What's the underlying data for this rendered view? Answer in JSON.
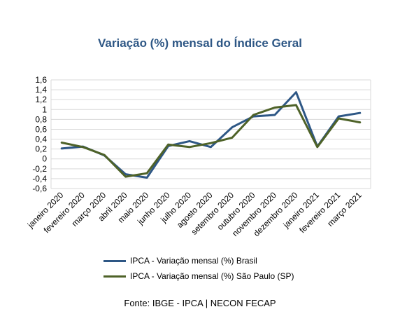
{
  "chart_data": {
    "type": "line",
    "title": "Variação (%) mensal do Índice Geral",
    "categories": [
      "janeiro 2020",
      "fevereiro 2020",
      "março 2020",
      "abril 2020",
      "maio 2020",
      "junho 2020",
      "julho 2020",
      "agosto 2020",
      "setembro 2020",
      "outubro 2020",
      "novembro 2020",
      "dezembro 2020",
      "janeiro 2021",
      "fevereiro 2021",
      "março 2021"
    ],
    "yticks": [
      "1,6",
      "1,4",
      "1,2",
      "1",
      "0,8",
      "0,6",
      "0,4",
      "0,2",
      "0",
      "-0,2",
      "-0,4",
      "-0,6"
    ],
    "ylim": [
      -0.6,
      1.6
    ],
    "grid": true,
    "legend_position": "bottom",
    "series": [
      {
        "name": "IPCA - Variação mensal (%) Brasil",
        "color": "#2e5785",
        "values": [
          0.21,
          0.25,
          0.07,
          -0.31,
          -0.38,
          0.26,
          0.36,
          0.24,
          0.64,
          0.86,
          0.89,
          1.35,
          0.25,
          0.86,
          0.93
        ]
      },
      {
        "name": "IPCA - Variação mensal (%) São Paulo (SP)",
        "color": "#4e6228",
        "values": [
          0.33,
          0.24,
          0.08,
          -0.36,
          -0.29,
          0.29,
          0.24,
          0.32,
          0.43,
          0.89,
          1.04,
          1.09,
          0.24,
          0.82,
          0.74
        ]
      }
    ]
  },
  "source_note": "Fonte: IBGE - IPCA | NECON FECAP"
}
